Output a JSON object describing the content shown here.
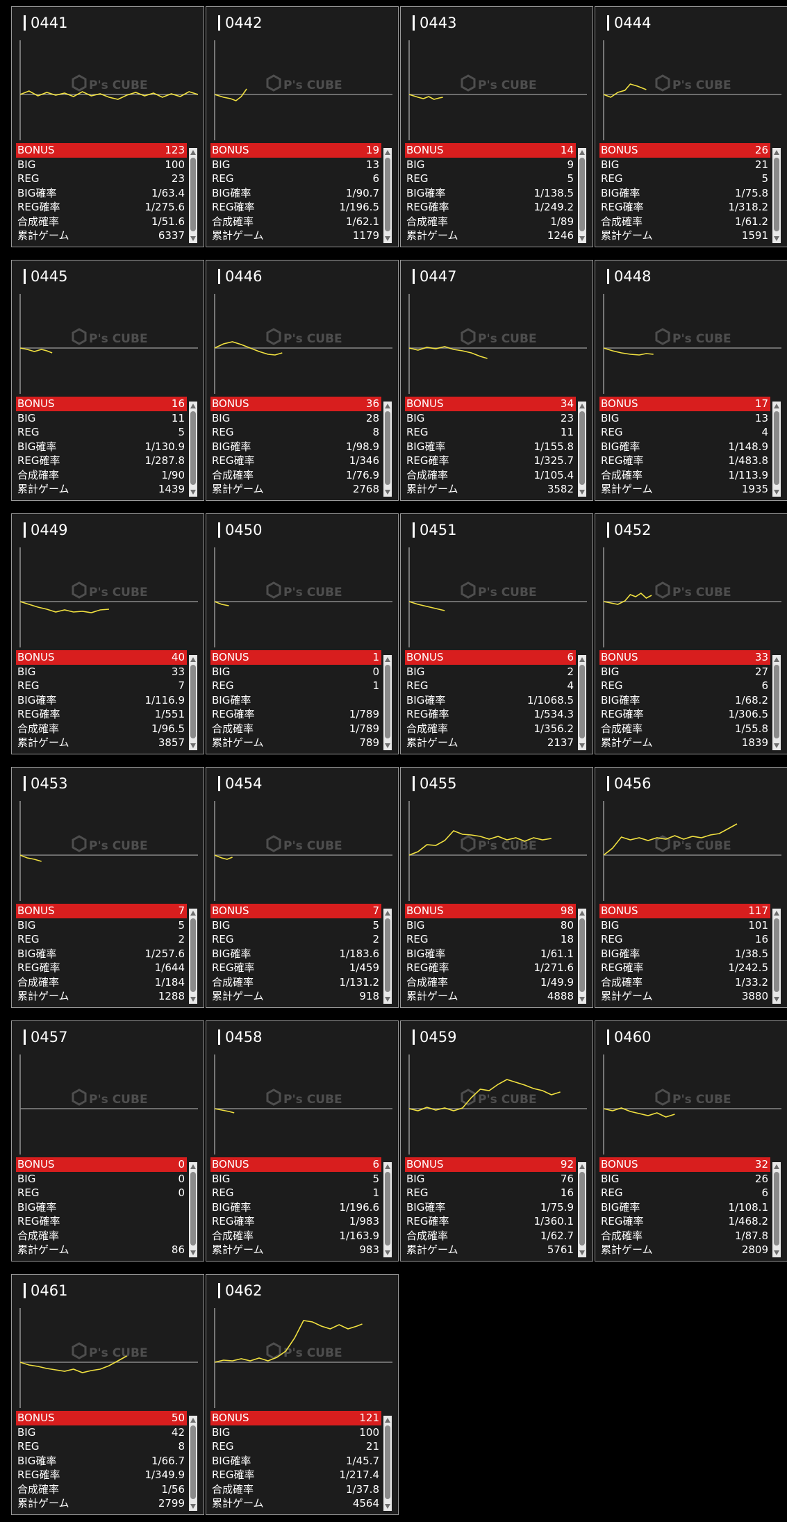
{
  "labels": {
    "bonus": "BONUS",
    "big": "BIG",
    "reg": "REG",
    "big_rate": "BIG確率",
    "reg_rate": "REG確率",
    "combined_rate": "合成確率",
    "total_games": "累計ゲーム"
  },
  "watermark": {
    "text": "P's CUBE"
  },
  "colors": {
    "bonus_bar": "#d81e1e",
    "graph_line": "#f0e040",
    "baseline": "#888888",
    "card_bg": "#1c1c1c"
  },
  "machines": [
    {
      "number": "0441",
      "bonus": "123",
      "big": "100",
      "reg": "23",
      "big_rate": "1/63.4",
      "reg_rate": "1/275.6",
      "combined_rate": "1/51.6",
      "total_games": "6337",
      "graph": [
        [
          0,
          0
        ],
        [
          0.05,
          5
        ],
        [
          0.1,
          -2
        ],
        [
          0.15,
          3
        ],
        [
          0.2,
          -1
        ],
        [
          0.25,
          2
        ],
        [
          0.3,
          -3
        ],
        [
          0.35,
          4
        ],
        [
          0.4,
          -2
        ],
        [
          0.45,
          1
        ],
        [
          0.5,
          -4
        ],
        [
          0.55,
          -7
        ],
        [
          0.6,
          -1
        ],
        [
          0.65,
          3
        ],
        [
          0.7,
          -2
        ],
        [
          0.75,
          2
        ],
        [
          0.8,
          -4
        ],
        [
          0.85,
          1
        ],
        [
          0.9,
          -3
        ],
        [
          0.95,
          4
        ],
        [
          1,
          0
        ]
      ]
    },
    {
      "number": "0442",
      "bonus": "19",
      "big": "13",
      "reg": "6",
      "big_rate": "1/90.7",
      "reg_rate": "1/196.5",
      "combined_rate": "1/62.1",
      "total_games": "1179",
      "graph": [
        [
          0,
          0
        ],
        [
          0.05,
          -4
        ],
        [
          0.09,
          -6
        ],
        [
          0.12,
          -9
        ],
        [
          0.15,
          -3
        ],
        [
          0.18,
          8
        ]
      ]
    },
    {
      "number": "0443",
      "bonus": "14",
      "big": "9",
      "reg": "5",
      "big_rate": "1/138.5",
      "reg_rate": "1/249.2",
      "combined_rate": "1/89",
      "total_games": "1246",
      "graph": [
        [
          0,
          0
        ],
        [
          0.05,
          -4
        ],
        [
          0.08,
          -6
        ],
        [
          0.11,
          -3
        ],
        [
          0.14,
          -7
        ],
        [
          0.17,
          -5
        ],
        [
          0.19,
          -4
        ]
      ]
    },
    {
      "number": "0444",
      "bonus": "26",
      "big": "21",
      "reg": "5",
      "big_rate": "1/75.8",
      "reg_rate": "1/318.2",
      "combined_rate": "1/61.2",
      "total_games": "1591",
      "graph": [
        [
          0,
          0
        ],
        [
          0.04,
          -4
        ],
        [
          0.08,
          3
        ],
        [
          0.12,
          6
        ],
        [
          0.15,
          15
        ],
        [
          0.19,
          12
        ],
        [
          0.24,
          7
        ]
      ]
    },
    {
      "number": "0445",
      "bonus": "16",
      "big": "11",
      "reg": "5",
      "big_rate": "1/130.9",
      "reg_rate": "1/287.8",
      "combined_rate": "1/90",
      "total_games": "1439",
      "graph": [
        [
          0,
          0
        ],
        [
          0.04,
          -2
        ],
        [
          0.08,
          -5
        ],
        [
          0.12,
          -2
        ],
        [
          0.15,
          -4
        ],
        [
          0.18,
          -7
        ]
      ]
    },
    {
      "number": "0446",
      "bonus": "36",
      "big": "28",
      "reg": "8",
      "big_rate": "1/98.9",
      "reg_rate": "1/346",
      "combined_rate": "1/76.9",
      "total_games": "2768",
      "graph": [
        [
          0,
          0
        ],
        [
          0.05,
          6
        ],
        [
          0.1,
          9
        ],
        [
          0.15,
          5
        ],
        [
          0.2,
          0
        ],
        [
          0.25,
          -5
        ],
        [
          0.3,
          -9
        ],
        [
          0.34,
          -10
        ],
        [
          0.38,
          -7
        ]
      ]
    },
    {
      "number": "0447",
      "bonus": "34",
      "big": "23",
      "reg": "11",
      "big_rate": "1/155.8",
      "reg_rate": "1/325.7",
      "combined_rate": "1/105.4",
      "total_games": "3582",
      "graph": [
        [
          0,
          0
        ],
        [
          0.05,
          -3
        ],
        [
          0.1,
          1
        ],
        [
          0.15,
          -1
        ],
        [
          0.2,
          2
        ],
        [
          0.25,
          -2
        ],
        [
          0.3,
          -4
        ],
        [
          0.35,
          -7
        ],
        [
          0.4,
          -12
        ],
        [
          0.44,
          -15
        ]
      ]
    },
    {
      "number": "0448",
      "bonus": "17",
      "big": "13",
      "reg": "4",
      "big_rate": "1/148.9",
      "reg_rate": "1/483.8",
      "combined_rate": "1/113.9",
      "total_games": "1935",
      "graph": [
        [
          0,
          0
        ],
        [
          0.05,
          -4
        ],
        [
          0.1,
          -7
        ],
        [
          0.15,
          -9
        ],
        [
          0.2,
          -10
        ],
        [
          0.24,
          -8
        ],
        [
          0.28,
          -9
        ]
      ]
    },
    {
      "number": "0449",
      "bonus": "40",
      "big": "33",
      "reg": "7",
      "big_rate": "1/116.9",
      "reg_rate": "1/551",
      "combined_rate": "1/96.5",
      "total_games": "3857",
      "graph": [
        [
          0,
          0
        ],
        [
          0.05,
          -4
        ],
        [
          0.1,
          -8
        ],
        [
          0.15,
          -11
        ],
        [
          0.2,
          -15
        ],
        [
          0.25,
          -12
        ],
        [
          0.3,
          -15
        ],
        [
          0.35,
          -14
        ],
        [
          0.4,
          -16
        ],
        [
          0.45,
          -12
        ],
        [
          0.5,
          -11
        ]
      ]
    },
    {
      "number": "0450",
      "bonus": "1",
      "big": "0",
      "reg": "1",
      "big_rate": "",
      "reg_rate": "1/789",
      "combined_rate": "1/789",
      "total_games": "789",
      "graph": [
        [
          0,
          0
        ],
        [
          0.04,
          -4
        ],
        [
          0.08,
          -6
        ]
      ]
    },
    {
      "number": "0451",
      "bonus": "6",
      "big": "2",
      "reg": "4",
      "big_rate": "1/1068.5",
      "reg_rate": "1/534.3",
      "combined_rate": "1/356.2",
      "total_games": "2137",
      "graph": [
        [
          0,
          0
        ],
        [
          0.05,
          -4
        ],
        [
          0.1,
          -7
        ],
        [
          0.15,
          -10
        ],
        [
          0.2,
          -13
        ]
      ]
    },
    {
      "number": "0452",
      "bonus": "33",
      "big": "27",
      "reg": "6",
      "big_rate": "1/68.2",
      "reg_rate": "1/306.5",
      "combined_rate": "1/55.8",
      "total_games": "1839",
      "graph": [
        [
          0,
          0
        ],
        [
          0.04,
          -2
        ],
        [
          0.08,
          -4
        ],
        [
          0.12,
          1
        ],
        [
          0.15,
          10
        ],
        [
          0.18,
          7
        ],
        [
          0.21,
          12
        ],
        [
          0.24,
          5
        ],
        [
          0.27,
          9
        ]
      ]
    },
    {
      "number": "0453",
      "bonus": "7",
      "big": "5",
      "reg": "2",
      "big_rate": "1/257.6",
      "reg_rate": "1/644",
      "combined_rate": "1/184",
      "total_games": "1288",
      "graph": [
        [
          0,
          0
        ],
        [
          0.04,
          -4
        ],
        [
          0.08,
          -6
        ],
        [
          0.12,
          -9
        ]
      ]
    },
    {
      "number": "0454",
      "bonus": "7",
      "big": "5",
      "reg": "2",
      "big_rate": "1/183.6",
      "reg_rate": "1/459",
      "combined_rate": "1/131.2",
      "total_games": "918",
      "graph": [
        [
          0,
          0
        ],
        [
          0.04,
          -4
        ],
        [
          0.07,
          -6
        ],
        [
          0.1,
          -3
        ]
      ]
    },
    {
      "number": "0455",
      "bonus": "98",
      "big": "80",
      "reg": "18",
      "big_rate": "1/61.1",
      "reg_rate": "1/271.6",
      "combined_rate": "1/49.9",
      "total_games": "4888",
      "graph": [
        [
          0,
          0
        ],
        [
          0.05,
          5
        ],
        [
          0.1,
          15
        ],
        [
          0.15,
          14
        ],
        [
          0.2,
          21
        ],
        [
          0.25,
          35
        ],
        [
          0.3,
          30
        ],
        [
          0.35,
          29
        ],
        [
          0.4,
          27
        ],
        [
          0.45,
          23
        ],
        [
          0.5,
          27
        ],
        [
          0.55,
          22
        ],
        [
          0.6,
          25
        ],
        [
          0.65,
          20
        ],
        [
          0.7,
          25
        ],
        [
          0.75,
          22
        ],
        [
          0.8,
          24
        ]
      ]
    },
    {
      "number": "0456",
      "bonus": "117",
      "big": "101",
      "reg": "16",
      "big_rate": "1/38.5",
      "reg_rate": "1/242.5",
      "combined_rate": "1/33.2",
      "total_games": "3880",
      "graph": [
        [
          0,
          0
        ],
        [
          0.05,
          10
        ],
        [
          0.1,
          26
        ],
        [
          0.15,
          22
        ],
        [
          0.2,
          25
        ],
        [
          0.25,
          21
        ],
        [
          0.3,
          25
        ],
        [
          0.35,
          23
        ],
        [
          0.4,
          28
        ],
        [
          0.45,
          23
        ],
        [
          0.5,
          27
        ],
        [
          0.55,
          25
        ],
        [
          0.6,
          29
        ],
        [
          0.65,
          31
        ],
        [
          0.7,
          38
        ],
        [
          0.75,
          45
        ]
      ]
    },
    {
      "number": "0457",
      "bonus": "0",
      "big": "0",
      "reg": "0",
      "big_rate": "",
      "reg_rate": "",
      "combined_rate": "",
      "total_games": "86",
      "graph": []
    },
    {
      "number": "0458",
      "bonus": "6",
      "big": "5",
      "reg": "1",
      "big_rate": "1/196.6",
      "reg_rate": "1/983",
      "combined_rate": "1/163.9",
      "total_games": "983",
      "graph": [
        [
          0,
          0
        ],
        [
          0.04,
          -2
        ],
        [
          0.08,
          -4
        ],
        [
          0.11,
          -6
        ]
      ]
    },
    {
      "number": "0459",
      "bonus": "92",
      "big": "76",
      "reg": "16",
      "big_rate": "1/75.9",
      "reg_rate": "1/360.1",
      "combined_rate": "1/62.7",
      "total_games": "5761",
      "graph": [
        [
          0,
          0
        ],
        [
          0.05,
          -3
        ],
        [
          0.1,
          2
        ],
        [
          0.15,
          -2
        ],
        [
          0.2,
          1
        ],
        [
          0.25,
          -3
        ],
        [
          0.3,
          1
        ],
        [
          0.35,
          16
        ],
        [
          0.4,
          28
        ],
        [
          0.45,
          26
        ],
        [
          0.5,
          35
        ],
        [
          0.55,
          42
        ],
        [
          0.6,
          38
        ],
        [
          0.65,
          34
        ],
        [
          0.7,
          29
        ],
        [
          0.75,
          26
        ],
        [
          0.8,
          20
        ],
        [
          0.85,
          24
        ]
      ]
    },
    {
      "number": "0460",
      "bonus": "32",
      "big": "26",
      "reg": "6",
      "big_rate": "1/108.1",
      "reg_rate": "1/468.2",
      "combined_rate": "1/87.8",
      "total_games": "2809",
      "graph": [
        [
          0,
          0
        ],
        [
          0.05,
          -3
        ],
        [
          0.1,
          1
        ],
        [
          0.15,
          -4
        ],
        [
          0.2,
          -7
        ],
        [
          0.25,
          -10
        ],
        [
          0.3,
          -6
        ],
        [
          0.35,
          -12
        ],
        [
          0.4,
          -8
        ]
      ]
    },
    {
      "number": "0461",
      "bonus": "50",
      "big": "42",
      "reg": "8",
      "big_rate": "1/66.7",
      "reg_rate": "1/349.9",
      "combined_rate": "1/56",
      "total_games": "2799",
      "graph": [
        [
          0,
          0
        ],
        [
          0.05,
          -4
        ],
        [
          0.1,
          -6
        ],
        [
          0.15,
          -9
        ],
        [
          0.2,
          -11
        ],
        [
          0.25,
          -13
        ],
        [
          0.3,
          -10
        ],
        [
          0.35,
          -15
        ],
        [
          0.4,
          -12
        ],
        [
          0.45,
          -10
        ],
        [
          0.5,
          -5
        ],
        [
          0.55,
          2
        ],
        [
          0.6,
          9
        ]
      ]
    },
    {
      "number": "0462",
      "bonus": "121",
      "big": "100",
      "reg": "21",
      "big_rate": "1/45.7",
      "reg_rate": "1/217.4",
      "combined_rate": "1/37.8",
      "total_games": "4564",
      "graph": [
        [
          0,
          0
        ],
        [
          0.05,
          3
        ],
        [
          0.1,
          2
        ],
        [
          0.15,
          5
        ],
        [
          0.2,
          2
        ],
        [
          0.25,
          6
        ],
        [
          0.3,
          2
        ],
        [
          0.35,
          7
        ],
        [
          0.4,
          16
        ],
        [
          0.45,
          35
        ],
        [
          0.5,
          60
        ],
        [
          0.55,
          58
        ],
        [
          0.6,
          52
        ],
        [
          0.65,
          48
        ],
        [
          0.7,
          54
        ],
        [
          0.75,
          48
        ],
        [
          0.8,
          52
        ],
        [
          0.83,
          55
        ]
      ]
    }
  ]
}
